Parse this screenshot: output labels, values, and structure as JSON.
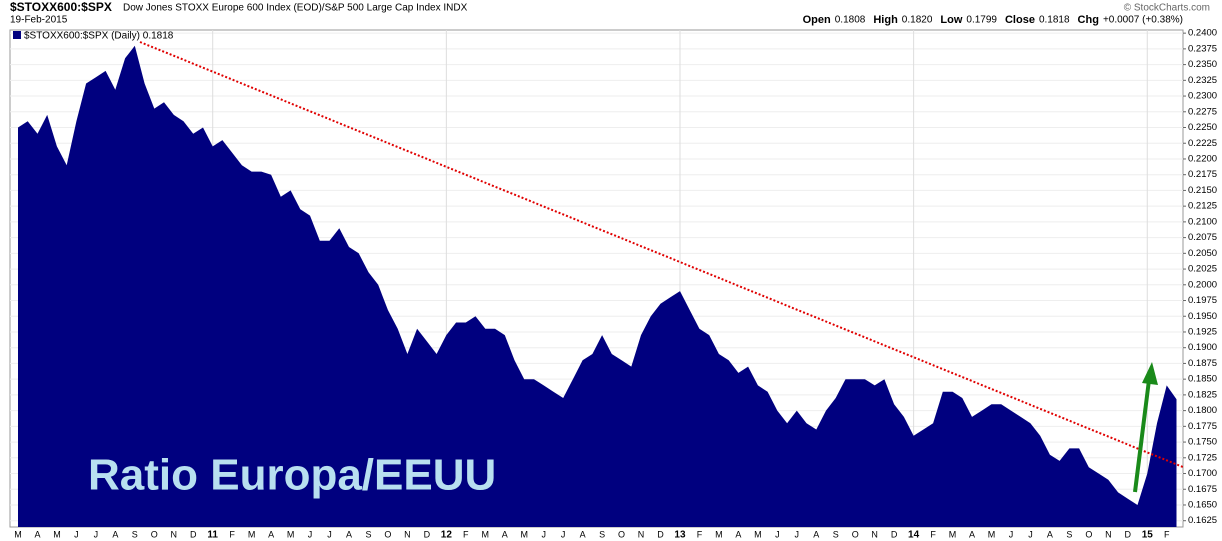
{
  "chart_data": {
    "type": "area",
    "symbol": "$STOXX600:$SPX",
    "title": "Dow Jones STOXX Europe 600 Index (EOD)/S&P 500 Large Cap Index  INDX",
    "date": "19-Feb-2015",
    "source": "© StockCharts.com",
    "quote": [
      {
        "label": "Open",
        "value": "0.1808"
      },
      {
        "label": "High",
        "value": "0.1820"
      },
      {
        "label": "Low",
        "value": "0.1799"
      },
      {
        "label": "Close",
        "value": "0.1818"
      },
      {
        "label": "Chg",
        "value": "+0.0007 (+0.38%)"
      }
    ],
    "annotation": "Ratio Europa/EEUU",
    "categories": [
      "M",
      null,
      "A",
      null,
      "M",
      null,
      "J",
      null,
      "J",
      null,
      "A",
      null,
      "S",
      null,
      "O",
      null,
      "N",
      null,
      "D",
      null,
      "11",
      null,
      "F",
      null,
      "M",
      null,
      "A",
      null,
      "M",
      null,
      "J",
      null,
      "J",
      null,
      "A",
      null,
      "S",
      null,
      "O",
      null,
      "N",
      null,
      "D",
      null,
      "12",
      null,
      "F",
      null,
      "M",
      null,
      "A",
      null,
      "M",
      null,
      "J",
      null,
      "J",
      null,
      "A",
      null,
      "S",
      null,
      "O",
      null,
      "N",
      null,
      "D",
      null,
      "13",
      null,
      "F",
      null,
      "M",
      null,
      "A",
      null,
      "M",
      null,
      "J",
      null,
      "J",
      null,
      "A",
      null,
      "S",
      null,
      "O",
      null,
      "N",
      null,
      "D",
      null,
      "14",
      null,
      "F",
      null,
      "M",
      null,
      "A",
      null,
      "M",
      null,
      "J",
      null,
      "J",
      null,
      "A",
      null,
      "S",
      null,
      "O",
      null,
      "N",
      null,
      "D",
      null,
      "15",
      null,
      "F",
      null
    ],
    "series": [
      {
        "name": "$STOXX600:$SPX (Daily) 0.1818",
        "color": "#00007f",
        "values": [
          0.225,
          0.226,
          0.224,
          0.227,
          0.222,
          0.219,
          0.226,
          0.232,
          0.233,
          0.234,
          0.231,
          0.236,
          0.238,
          0.232,
          0.228,
          0.229,
          0.227,
          0.226,
          0.224,
          0.225,
          0.222,
          0.223,
          0.221,
          0.219,
          0.218,
          0.218,
          0.2175,
          0.214,
          0.215,
          0.212,
          0.211,
          0.207,
          0.207,
          0.209,
          0.206,
          0.205,
          0.202,
          0.2,
          0.196,
          0.193,
          0.189,
          0.193,
          0.191,
          0.189,
          0.192,
          0.194,
          0.194,
          0.195,
          0.193,
          0.193,
          0.192,
          0.188,
          0.185,
          0.185,
          0.184,
          0.183,
          0.182,
          0.185,
          0.188,
          0.189,
          0.192,
          0.189,
          0.188,
          0.187,
          0.192,
          0.195,
          0.197,
          0.198,
          0.199,
          0.196,
          0.193,
          0.192,
          0.189,
          0.188,
          0.186,
          0.187,
          0.184,
          0.183,
          0.18,
          0.178,
          0.18,
          0.178,
          0.177,
          0.18,
          0.182,
          0.185,
          0.185,
          0.185,
          0.184,
          0.185,
          0.181,
          0.179,
          0.176,
          0.177,
          0.178,
          0.183,
          0.183,
          0.182,
          0.179,
          0.18,
          0.181,
          0.181,
          0.18,
          0.179,
          0.178,
          0.176,
          0.173,
          0.172,
          0.174,
          0.174,
          0.171,
          0.17,
          0.169,
          0.167,
          0.166,
          0.165,
          0.17,
          0.178,
          0.184,
          0.1818
        ]
      }
    ],
    "ylim": [
      0.1615,
      0.2405
    ],
    "yticks": [
      {
        "value": 0.1625,
        "label": "0.1625"
      },
      {
        "value": 0.165,
        "label": "0.1650"
      },
      {
        "value": 0.1675,
        "label": "0.1675"
      },
      {
        "value": 0.17,
        "label": "0.1700"
      },
      {
        "value": 0.1725,
        "label": "0.1725"
      },
      {
        "value": 0.175,
        "label": "0.1750"
      },
      {
        "value": 0.1775,
        "label": "0.1775"
      },
      {
        "value": 0.18,
        "label": "0.1800"
      },
      {
        "value": 0.1825,
        "label": "0.1825"
      },
      {
        "value": 0.185,
        "label": "0.1850"
      },
      {
        "value": 0.1875,
        "label": "0.1875"
      },
      {
        "value": 0.19,
        "label": "0.1900"
      },
      {
        "value": 0.1925,
        "label": "0.1925"
      },
      {
        "value": 0.195,
        "label": "0.1950"
      },
      {
        "value": 0.1975,
        "label": "0.1975"
      },
      {
        "value": 0.2,
        "label": "0.2000"
      },
      {
        "value": 0.2025,
        "label": "0.2025"
      },
      {
        "value": 0.205,
        "label": "0.2050"
      },
      {
        "value": 0.2075,
        "label": "0.2075"
      },
      {
        "value": 0.21,
        "label": "0.2100"
      },
      {
        "value": 0.2125,
        "label": "0.2125"
      },
      {
        "value": 0.215,
        "label": "0.2150"
      },
      {
        "value": 0.2175,
        "label": "0.2175"
      },
      {
        "value": 0.22,
        "label": "0.2200"
      },
      {
        "value": 0.2225,
        "label": "0.2225"
      },
      {
        "value": 0.225,
        "label": "0.2250"
      },
      {
        "value": 0.2275,
        "label": "0.2275"
      },
      {
        "value": 0.23,
        "label": "0.2300"
      },
      {
        "value": 0.2325,
        "label": "0.2325"
      },
      {
        "value": 0.235,
        "label": "0.2350"
      },
      {
        "value": 0.2375,
        "label": "0.2375"
      },
      {
        "value": 0.24,
        "label": "0.2400"
      }
    ],
    "grid": true
  }
}
